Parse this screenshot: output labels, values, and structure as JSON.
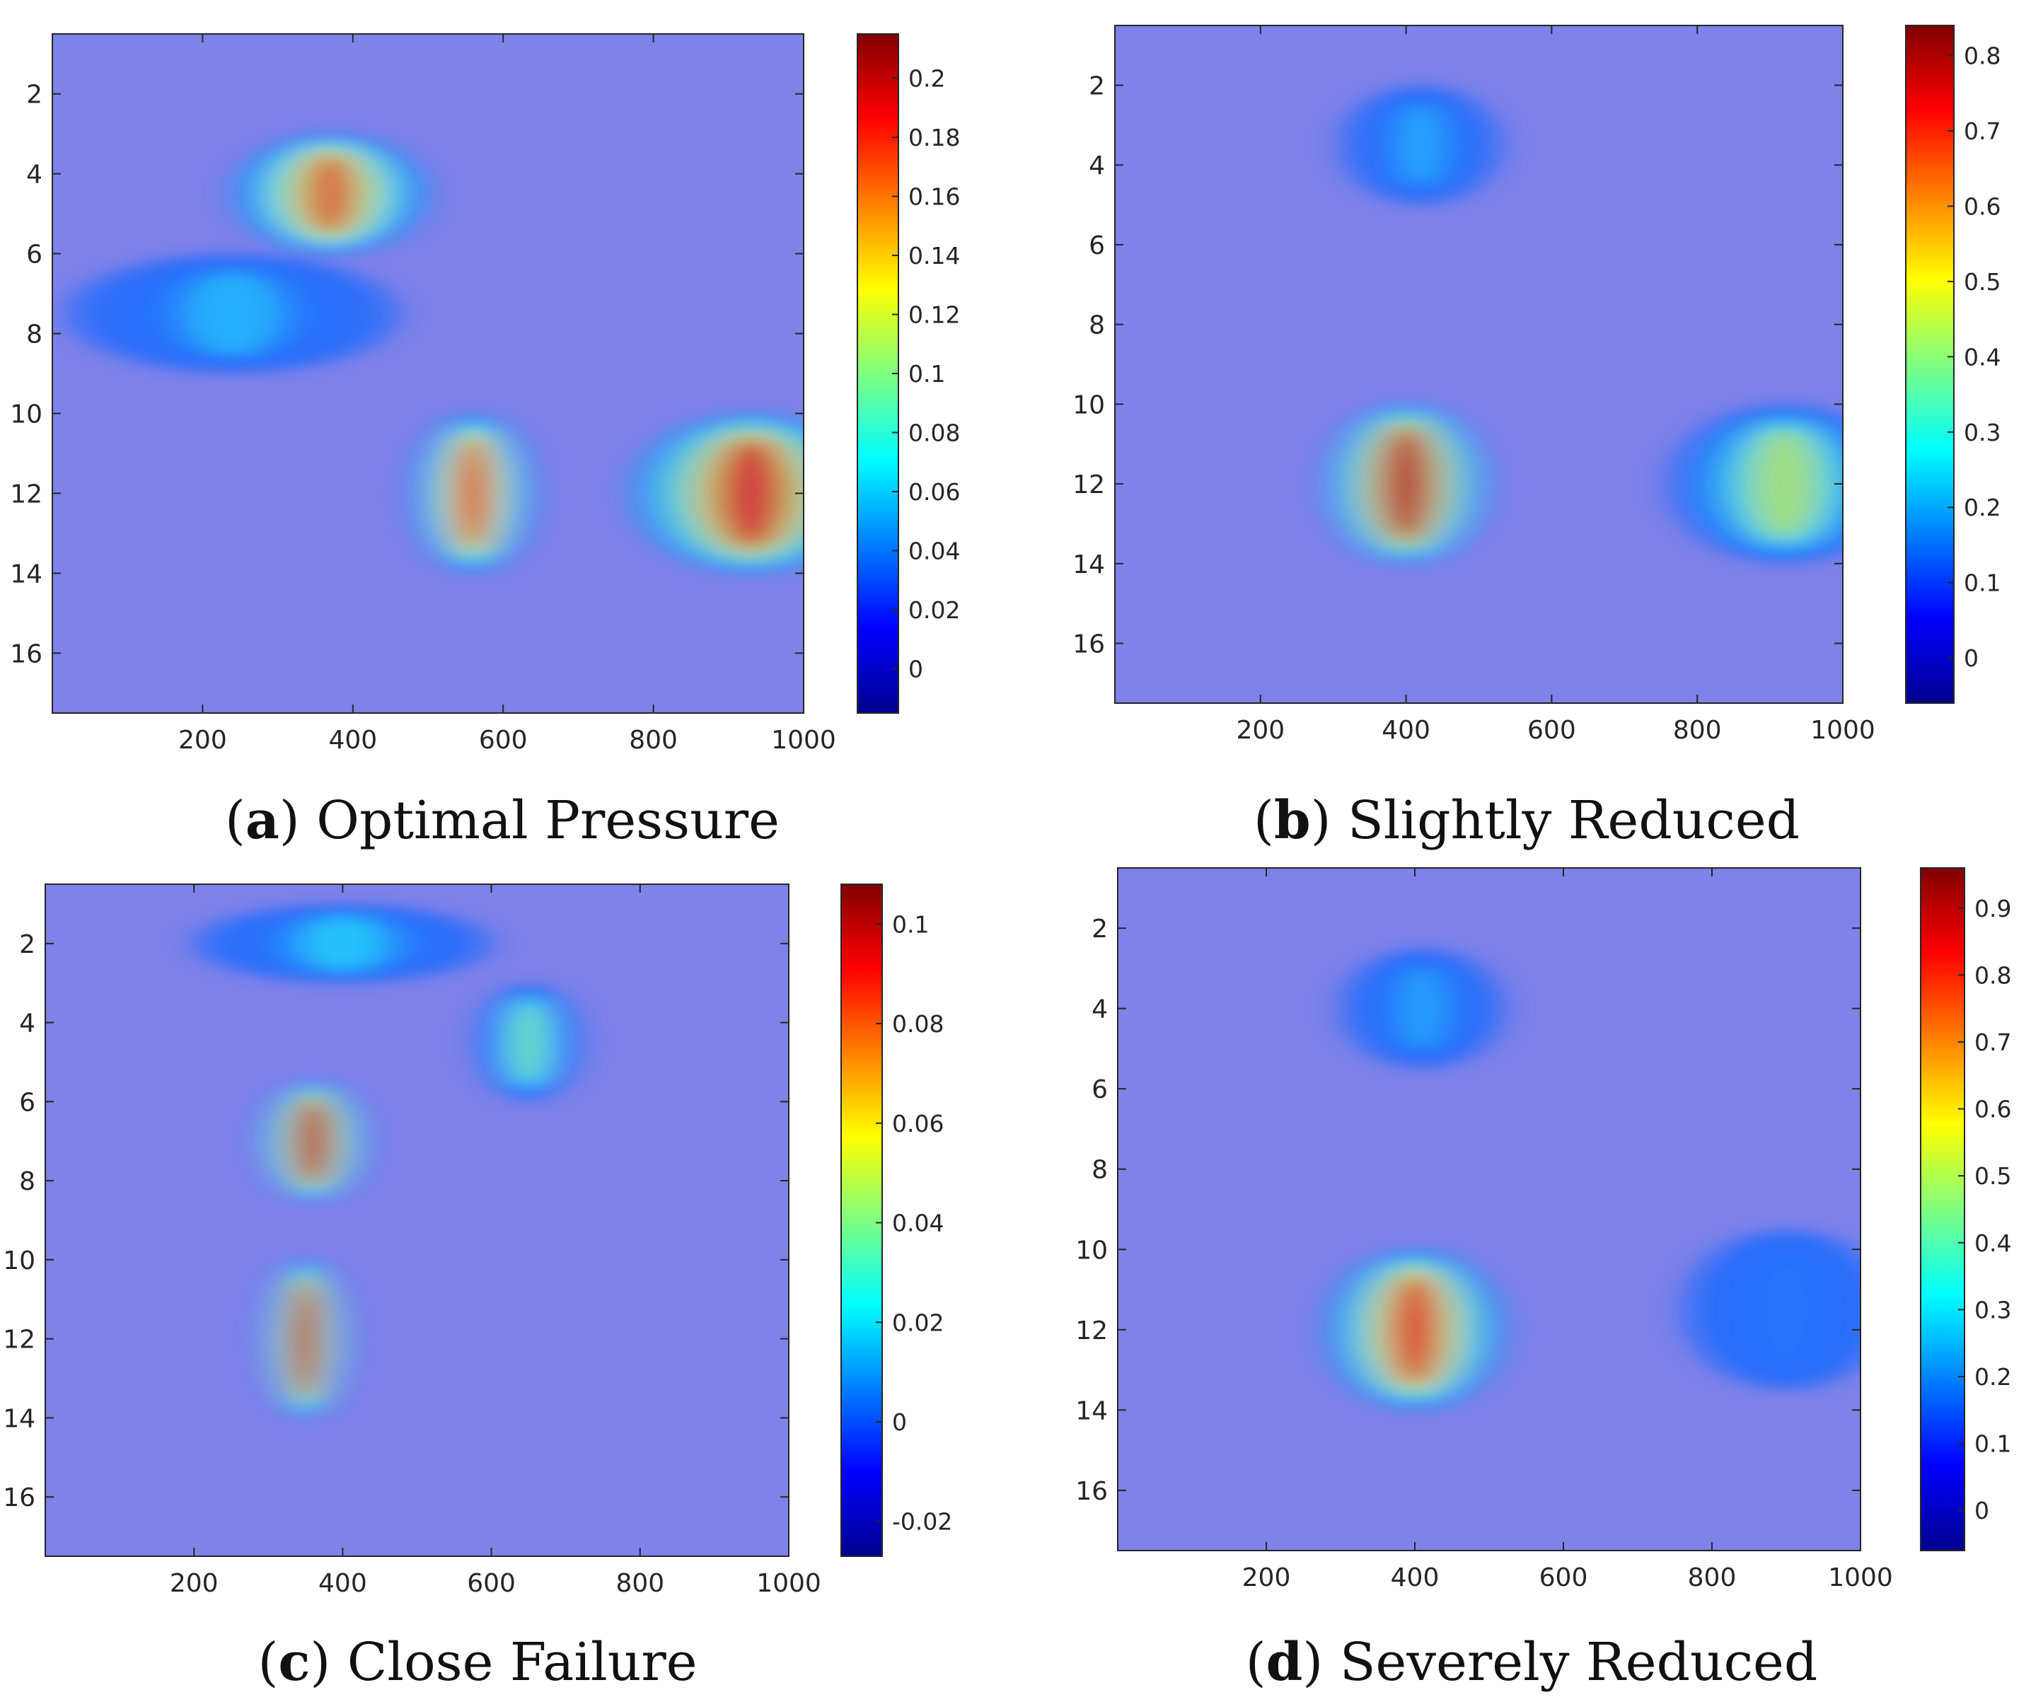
{
  "figure": {
    "panels": [
      {
        "id": "a",
        "caption_letter": "a",
        "caption_text": "Optimal Pressure"
      },
      {
        "id": "b",
        "caption_letter": "b",
        "caption_text": "Slightly Reduced"
      },
      {
        "id": "c",
        "caption_letter": "c",
        "caption_text": "Close Failure"
      },
      {
        "id": "d",
        "caption_letter": "d",
        "caption_text": "Severely Reduced"
      }
    ]
  },
  "chart_data": [
    {
      "type": "heatmap",
      "title": "Optimal Pressure",
      "x_range": [
        0,
        1000
      ],
      "y_range": [
        0.5,
        17.5
      ],
      "x_ticks": [
        200,
        400,
        600,
        800,
        1000
      ],
      "y_ticks": [
        2,
        4,
        6,
        8,
        10,
        12,
        14,
        16
      ],
      "colormap": "jet",
      "colorbar_range": [
        -0.015,
        0.215
      ],
      "colorbar_ticks": [
        0,
        0.02,
        0.04,
        0.06,
        0.08,
        0.1,
        0.12,
        0.14,
        0.16,
        0.18,
        0.2
      ],
      "hotspots": [
        {
          "x": 370,
          "y": 4.5,
          "x_width": 130,
          "y_extent": 1.5,
          "value": 0.17
        },
        {
          "x": 240,
          "y": 7.5,
          "x_width": 220,
          "y_extent": 1.5,
          "value": 0.06
        },
        {
          "x": 560,
          "y": 12,
          "x_width": 80,
          "y_extent": 2.0,
          "value": 0.18
        },
        {
          "x": 930,
          "y": 12,
          "x_width": 160,
          "y_extent": 2.0,
          "value": 0.19
        }
      ]
    },
    {
      "type": "heatmap",
      "title": "Slightly Reduced",
      "x_range": [
        0,
        1000
      ],
      "y_range": [
        0.5,
        17.5
      ],
      "x_ticks": [
        200,
        400,
        600,
        800,
        1000
      ],
      "y_ticks": [
        2,
        4,
        6,
        8,
        10,
        12,
        14,
        16
      ],
      "colormap": "jet",
      "colorbar_range": [
        -0.06,
        0.84
      ],
      "colorbar_ticks": [
        0,
        0.1,
        0.2,
        0.3,
        0.4,
        0.5,
        0.6,
        0.7,
        0.8
      ],
      "hotspots": [
        {
          "x": 400,
          "y": 12,
          "x_width": 110,
          "y_extent": 2.0,
          "value": 0.78
        },
        {
          "x": 420,
          "y": 3.5,
          "x_width": 110,
          "y_extent": 1.5,
          "value": 0.22
        },
        {
          "x": 920,
          "y": 12,
          "x_width": 160,
          "y_extent": 2.0,
          "value": 0.45
        }
      ]
    },
    {
      "type": "heatmap",
      "title": "Close Failure",
      "x_range": [
        0,
        1000
      ],
      "y_range": [
        0.5,
        17.5
      ],
      "x_ticks": [
        200,
        400,
        600,
        800,
        1000
      ],
      "y_ticks": [
        2,
        4,
        6,
        8,
        10,
        12,
        14,
        16
      ],
      "colormap": "jet",
      "colorbar_range": [
        -0.027,
        0.108
      ],
      "colorbar_ticks": [
        -0.02,
        0,
        0.02,
        0.04,
        0.06,
        0.08,
        0.1
      ],
      "hotspots": [
        {
          "x": 360,
          "y": 7,
          "x_width": 70,
          "y_extent": 1.5,
          "value": 0.1
        },
        {
          "x": 350,
          "y": 12,
          "x_width": 55,
          "y_extent": 2.0,
          "value": 0.1
        },
        {
          "x": 650,
          "y": 4.5,
          "x_width": 70,
          "y_extent": 1.5,
          "value": 0.04
        },
        {
          "x": 400,
          "y": 2.0,
          "x_width": 200,
          "y_extent": 1.0,
          "value": 0.02
        }
      ]
    },
    {
      "type": "heatmap",
      "title": "Severely Reduced",
      "x_range": [
        0,
        1000
      ],
      "y_range": [
        0.5,
        17.5
      ],
      "x_ticks": [
        200,
        400,
        600,
        800,
        1000
      ],
      "y_ticks": [
        2,
        4,
        6,
        8,
        10,
        12,
        14,
        16
      ],
      "colormap": "jet",
      "colorbar_range": [
        -0.06,
        0.96
      ],
      "colorbar_ticks": [
        0,
        0.1,
        0.2,
        0.3,
        0.4,
        0.5,
        0.6,
        0.7,
        0.8,
        0.9
      ],
      "hotspots": [
        {
          "x": 400,
          "y": 12,
          "x_width": 120,
          "y_extent": 2.0,
          "value": 0.82
        },
        {
          "x": 410,
          "y": 4,
          "x_width": 110,
          "y_extent": 1.5,
          "value": 0.25
        },
        {
          "x": 900,
          "y": 11.5,
          "x_width": 140,
          "y_extent": 2.0,
          "value": 0.18
        }
      ]
    }
  ]
}
